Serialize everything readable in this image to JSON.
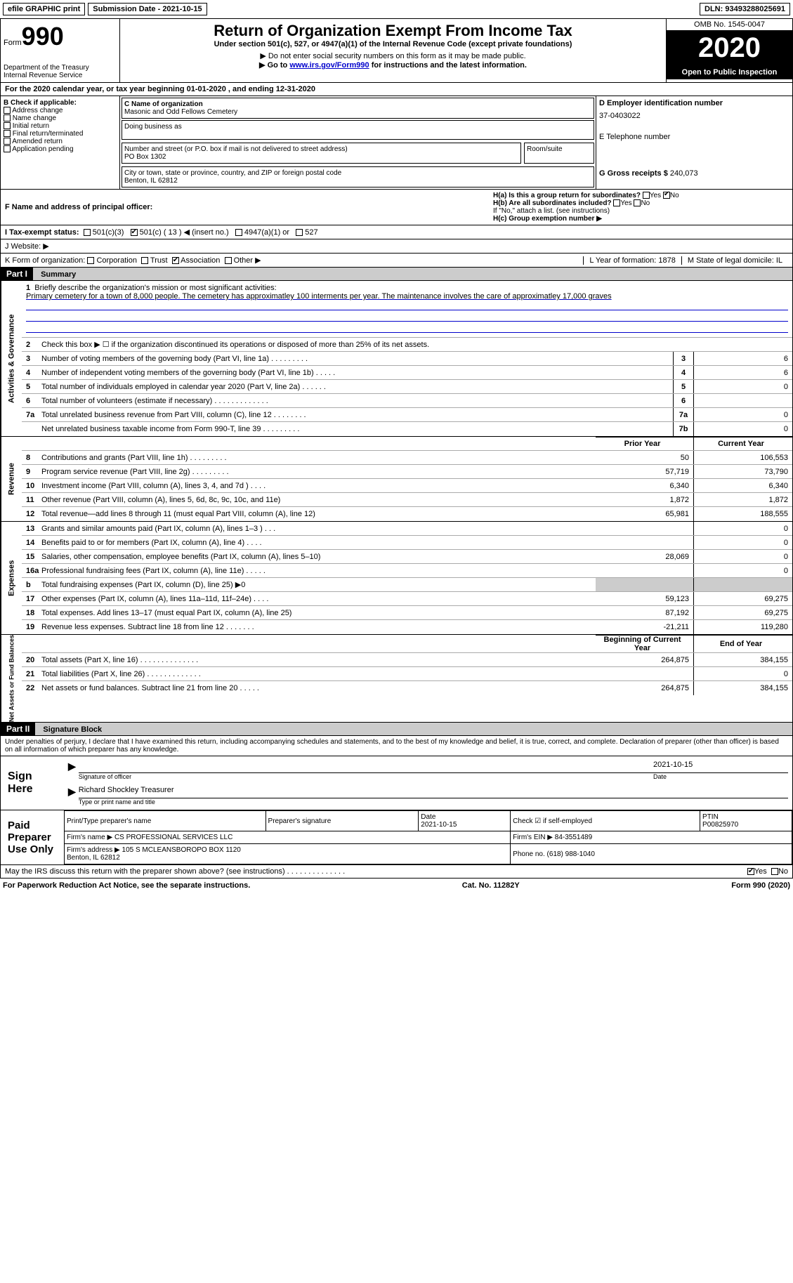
{
  "topbar": {
    "efile": "efile GRAPHIC print",
    "submission": "Submission Date - 2021-10-15",
    "dln": "DLN: 93493288025691"
  },
  "header": {
    "form_label": "Form",
    "form_num": "990",
    "dept": "Department of the Treasury\nInternal Revenue Service",
    "title": "Return of Organization Exempt From Income Tax",
    "subtitle": "Under section 501(c), 527, or 4947(a)(1) of the Internal Revenue Code (except private foundations)",
    "note1": "▶ Do not enter social security numbers on this form as it may be made public.",
    "note2_pre": "▶ Go to ",
    "note2_link": "www.irs.gov/Form990",
    "note2_post": " for instructions and the latest information.",
    "omb": "OMB No. 1545-0047",
    "year": "2020",
    "open": "Open to Public Inspection"
  },
  "line_a": "For the 2020 calendar year, or tax year beginning 01-01-2020    , and ending 12-31-2020",
  "col_b": {
    "header": "B Check if applicable:",
    "items": [
      "Address change",
      "Name change",
      "Initial return",
      "Final return/terminated",
      "Amended return",
      "Application pending"
    ]
  },
  "col_c": {
    "name_label": "C Name of organization",
    "name": "Masonic and Odd Fellows Cemetery",
    "dba_label": "Doing business as",
    "addr_label": "Number and street (or P.O. box if mail is not delivered to street address)",
    "room_label": "Room/suite",
    "addr": "PO Box 1302",
    "city_label": "City or town, state or province, country, and ZIP or foreign postal code",
    "city": "Benton, IL  62812"
  },
  "col_d": {
    "ein_label": "D Employer identification number",
    "ein": "37-0403022",
    "phone_label": "E Telephone number",
    "gross_label": "G Gross receipts $",
    "gross": "240,073"
  },
  "row_f": {
    "f_label": "F  Name and address of principal officer:",
    "ha_label": "H(a)  Is this a group return for subordinates?",
    "hb_label": "H(b)  Are all subordinates included?",
    "hb_note": "If \"No,\" attach a list. (see instructions)",
    "hc_label": "H(c)  Group exemption number ▶",
    "yes": "Yes",
    "no": "No"
  },
  "row_i": {
    "label": "I    Tax-exempt status:",
    "opts": [
      "501(c)(3)",
      "501(c) ( 13 ) ◀ (insert no.)",
      "4947(a)(1) or",
      "527"
    ]
  },
  "row_j": "J    Website: ▶",
  "row_k": {
    "label": "K Form of organization:",
    "opts": [
      "Corporation",
      "Trust",
      "Association",
      "Other ▶"
    ],
    "l": "L Year of formation: 1878",
    "m": "M State of legal domicile: IL"
  },
  "part1": {
    "header": "Part I",
    "title": "Summary",
    "mission_label": "Briefly describe the organization's mission or most significant activities:",
    "mission": "Primary cemetery for a town of 8,000 people. The cemetery has approximatley 100 interments per year. The maintenance involves the care of approximatley 17,000 graves",
    "line2": "Check this box ▶ ☐  if the organization discontinued its operations or disposed of more than 25% of its net assets.",
    "gov_lines": [
      {
        "n": "3",
        "t": "Number of voting members of the governing body (Part VI, line 1a)  .   .   .   .   .   .   .   .   .",
        "c": "3",
        "v": "6"
      },
      {
        "n": "4",
        "t": "Number of independent voting members of the governing body (Part VI, line 1b)   .   .   .   .   .",
        "c": "4",
        "v": "6"
      },
      {
        "n": "5",
        "t": "Total number of individuals employed in calendar year 2020 (Part V, line 2a)   .   .   .   .   .   .",
        "c": "5",
        "v": "0"
      },
      {
        "n": "6",
        "t": "Total number of volunteers (estimate if necessary)    .   .   .   .   .   .   .   .   .   .   .   .   .",
        "c": "6",
        "v": ""
      },
      {
        "n": "7a",
        "t": "Total unrelated business revenue from Part VIII, column (C), line 12   .   .   .   .   .   .   .   .",
        "c": "7a",
        "v": "0"
      },
      {
        "n": "",
        "t": "Net unrelated business taxable income from Form 990-T, line 39   .   .   .   .   .   .   .   .   .",
        "c": "7b",
        "v": "0"
      }
    ],
    "col_hdrs": {
      "prior": "Prior Year",
      "current": "Current Year"
    },
    "rev_lines": [
      {
        "n": "8",
        "t": "Contributions and grants (Part VIII, line 1h)   .   .   .   .   .   .   .   .   .",
        "p": "50",
        "c": "106,553"
      },
      {
        "n": "9",
        "t": "Program service revenue (Part VIII, line 2g)   .   .   .   .   .   .   .   .   .",
        "p": "57,719",
        "c": "73,790"
      },
      {
        "n": "10",
        "t": "Investment income (Part VIII, column (A), lines 3, 4, and 7d )   .   .   .   .",
        "p": "6,340",
        "c": "6,340"
      },
      {
        "n": "11",
        "t": "Other revenue (Part VIII, column (A), lines 5, 6d, 8c, 9c, 10c, and 11e)",
        "p": "1,872",
        "c": "1,872"
      },
      {
        "n": "12",
        "t": "Total revenue—add lines 8 through 11 (must equal Part VIII, column (A), line 12)",
        "p": "65,981",
        "c": "188,555"
      }
    ],
    "exp_lines": [
      {
        "n": "13",
        "t": "Grants and similar amounts paid (Part IX, column (A), lines 1–3 )   .   .   .",
        "p": "",
        "c": "0"
      },
      {
        "n": "14",
        "t": "Benefits paid to or for members (Part IX, column (A), line 4)   .   .   .   .",
        "p": "",
        "c": "0"
      },
      {
        "n": "15",
        "t": "Salaries, other compensation, employee benefits (Part IX, column (A), lines 5–10)",
        "p": "28,069",
        "c": "0"
      },
      {
        "n": "16a",
        "t": "Professional fundraising fees (Part IX, column (A), line 11e)   .   .   .   .   .",
        "p": "",
        "c": "0"
      },
      {
        "n": "b",
        "t": "Total fundraising expenses (Part IX, column (D), line 25) ▶0",
        "p": "SHADE",
        "c": "SHADE"
      },
      {
        "n": "17",
        "t": "Other expenses (Part IX, column (A), lines 11a–11d, 11f–24e)   .   .   .   .",
        "p": "59,123",
        "c": "69,275"
      },
      {
        "n": "18",
        "t": "Total expenses. Add lines 13–17 (must equal Part IX, column (A), line 25)",
        "p": "87,192",
        "c": "69,275"
      },
      {
        "n": "19",
        "t": "Revenue less expenses. Subtract line 18 from line 12   .   .   .   .   .   .   .",
        "p": "-21,211",
        "c": "119,280"
      }
    ],
    "net_hdrs": {
      "beg": "Beginning of Current Year",
      "end": "End of Year"
    },
    "net_lines": [
      {
        "n": "20",
        "t": "Total assets (Part X, line 16)   .   .   .   .   .   .   .   .   .   .   .   .   .   .",
        "p": "264,875",
        "c": "384,155"
      },
      {
        "n": "21",
        "t": "Total liabilities (Part X, line 26)   .   .   .   .   .   .   .   .   .   .   .   .   .",
        "p": "",
        "c": "0"
      },
      {
        "n": "22",
        "t": "Net assets or fund balances. Subtract line 21 from line 20   .   .   .   .   .",
        "p": "264,875",
        "c": "384,155"
      }
    ],
    "sections": {
      "gov": "Activities & Governance",
      "rev": "Revenue",
      "exp": "Expenses",
      "net": "Net Assets or Fund Balances"
    }
  },
  "part2": {
    "header": "Part II",
    "title": "Signature Block",
    "perjury": "Under penalties of perjury, I declare that I have examined this return, including accompanying schedules and statements, and to the best of my knowledge and belief, it is true, correct, and complete. Declaration of preparer (other than officer) is based on all information of which preparer has any knowledge.",
    "sign_here": "Sign Here",
    "sig_officer": "Signature of officer",
    "sig_date": "2021-10-15",
    "date_label": "Date",
    "officer_name": "Richard Shockley Treasurer",
    "type_name": "Type or print name and title",
    "paid": "Paid Preparer Use Only",
    "prep": {
      "print_label": "Print/Type preparer's name",
      "sig_label": "Preparer's signature",
      "date_label": "Date",
      "date": "2021-10-15",
      "check_label": "Check ☑ if self-employed",
      "ptin_label": "PTIN",
      "ptin": "P00825970",
      "firm_name_label": "Firm's name    ▶",
      "firm_name": "CS PROFESSIONAL SERVICES LLC",
      "firm_ein_label": "Firm's EIN ▶",
      "firm_ein": "84-3551489",
      "firm_addr_label": "Firm's address ▶",
      "firm_addr": "105 S MCLEANSBOROPO BOX 1120\nBenton, IL  62812",
      "phone_label": "Phone no.",
      "phone": "(618) 988-1040"
    },
    "discuss": "May the IRS discuss this return with the preparer shown above? (see instructions)   .   .   .   .   .   .   .   .   .   .   .   .   .   .",
    "yes": "Yes",
    "no": "No"
  },
  "footer": {
    "left": "For Paperwork Reduction Act Notice, see the separate instructions.",
    "center": "Cat. No. 11282Y",
    "right": "Form 990 (2020)"
  }
}
